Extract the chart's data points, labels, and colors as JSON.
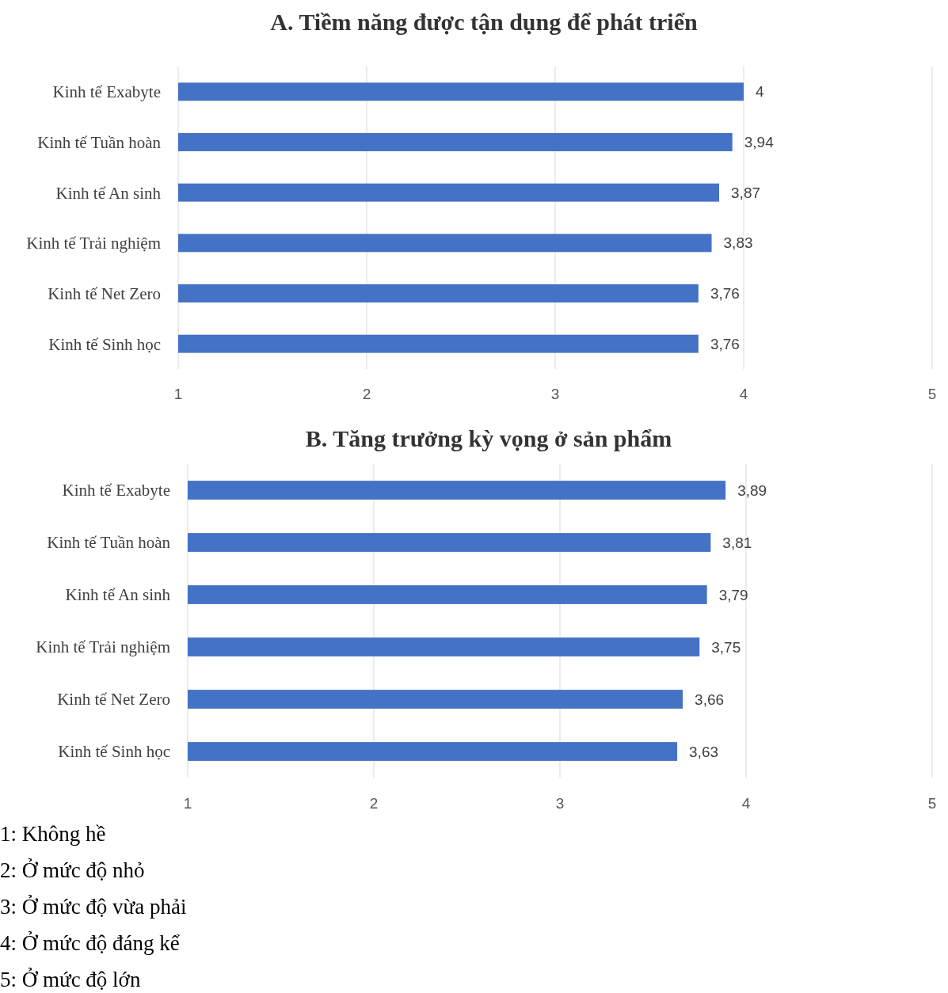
{
  "chart_data": [
    {
      "type": "bar",
      "orientation": "horizontal",
      "title": "A. Tiềm năng được tận dụng để phát triển",
      "categories": [
        "Kinh tế Exabyte",
        "Kinh tế Tuần hoàn",
        "Kinh tế An sinh",
        "Kinh tế Trải nghiệm",
        "Kinh tế Net Zero",
        "Kinh tế Sinh học"
      ],
      "values": [
        4,
        3.94,
        3.87,
        3.83,
        3.76,
        3.76
      ],
      "value_labels": [
        "4",
        "3,94",
        "3,87",
        "3,83",
        "3,76",
        "3,76"
      ],
      "color": "#4472c4",
      "xlim": [
        1,
        5
      ],
      "xticks": [
        1,
        2,
        3,
        4,
        5
      ],
      "grid": "x"
    },
    {
      "type": "bar",
      "orientation": "horizontal",
      "title": "B. Tăng trưởng kỳ vọng ở sản phẩm",
      "categories": [
        "Kinh tế Exabyte",
        "Kinh tế Tuần hoàn",
        "Kinh tế An sinh",
        "Kinh tế Trải nghiệm",
        "Kinh tế Net Zero",
        "Kinh tế Sinh học"
      ],
      "values": [
        3.89,
        3.81,
        3.79,
        3.75,
        3.66,
        3.63
      ],
      "value_labels": [
        "3,89",
        "3,81",
        "3,79",
        "3,75",
        "3,66",
        "3,63"
      ],
      "color": "#4472c4",
      "xlim": [
        1,
        5
      ],
      "xticks": [
        1,
        2,
        3,
        4,
        5
      ],
      "grid": "x",
      "annotations": [
        "1: Không hề",
        "2: Ở mức độ nhỏ",
        "3: Ở mức độ vừa phải",
        "4: Ở mức độ đáng kể",
        "5: Ở mức độ lớn"
      ]
    }
  ]
}
